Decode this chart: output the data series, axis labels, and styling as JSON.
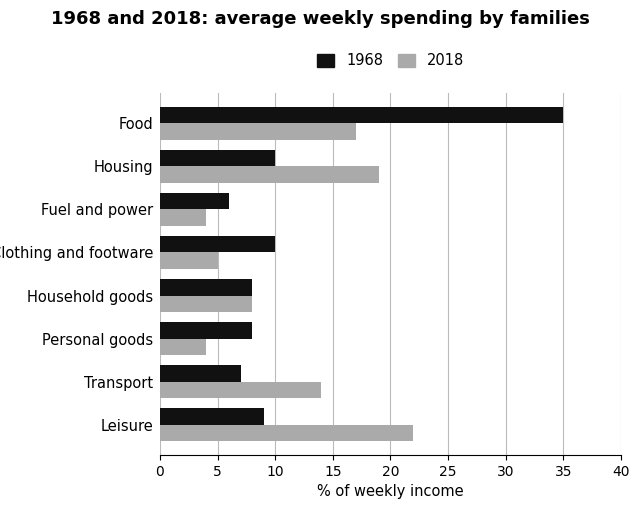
{
  "title": "1968 and 2018: average weekly spending by families",
  "categories": [
    "Food",
    "Housing",
    "Fuel and power",
    "Clothing and footware",
    "Household goods",
    "Personal goods",
    "Transport",
    "Leisure"
  ],
  "values_1968": [
    35,
    10,
    6,
    10,
    8,
    8,
    7,
    9
  ],
  "values_2018": [
    17,
    19,
    4,
    5,
    8,
    4,
    14,
    22
  ],
  "color_1968": "#111111",
  "color_2018": "#aaaaaa",
  "xlabel": "% of weekly income",
  "xlim": [
    0,
    40
  ],
  "xticks": [
    0,
    5,
    10,
    15,
    20,
    25,
    30,
    35,
    40
  ],
  "legend_labels": [
    "1968",
    "2018"
  ],
  "bar_height": 0.38,
  "title_fontsize": 13,
  "label_fontsize": 10.5,
  "tick_fontsize": 10,
  "background_color": "#ffffff"
}
